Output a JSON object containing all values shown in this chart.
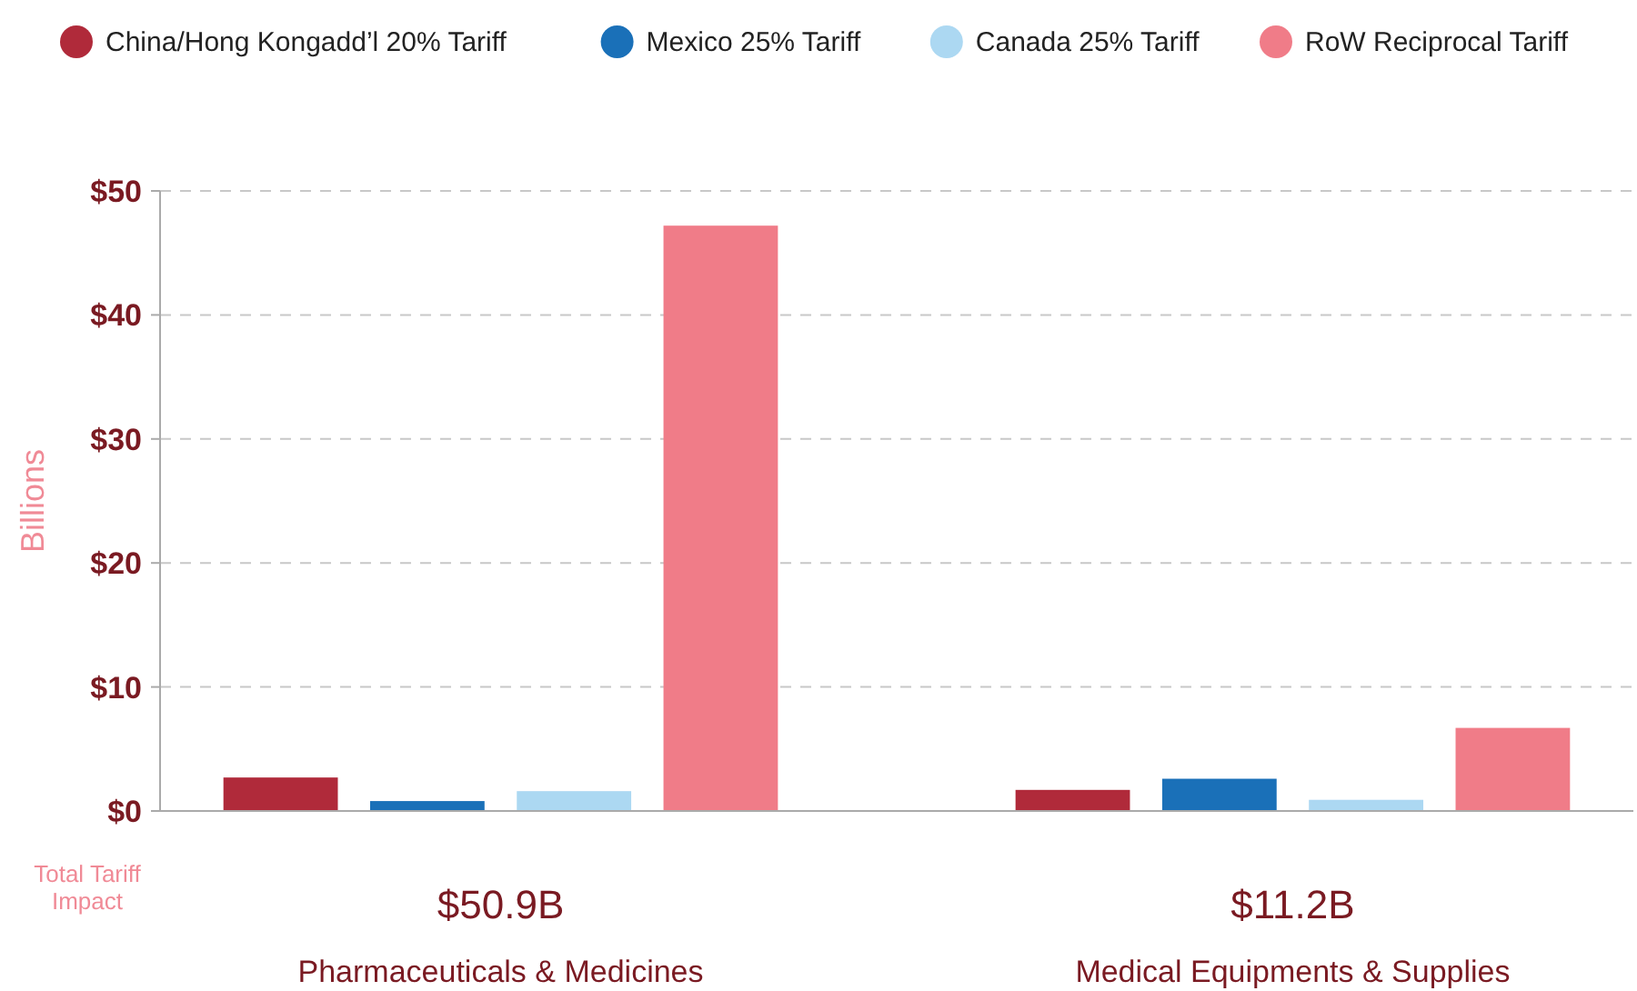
{
  "chart_data": {
    "type": "bar",
    "ylabel": "Billions",
    "categories": [
      "Pharmaceuticals & Medicines",
      "Medical Equipments & Supplies"
    ],
    "series": [
      {
        "name": "China/Hong Kongadd’l 20% Tariff",
        "color": "#b02a3a",
        "values": [
          2.7,
          1.7
        ]
      },
      {
        "name": "Mexico 25% Tariff",
        "color": "#1a70b8",
        "values": [
          0.8,
          2.6
        ]
      },
      {
        "name": "Canada 25% Tariff",
        "color": "#acd8f2",
        "values": [
          1.6,
          0.9
        ]
      },
      {
        "name": "RoW Reciprocal Tariff",
        "color": "#f07c88",
        "values": [
          47.2,
          6.7
        ]
      }
    ],
    "ylim": [
      0,
      50
    ],
    "yticks": [
      {
        "value": 0,
        "label": "$0"
      },
      {
        "value": 10,
        "label": "$10"
      },
      {
        "value": 20,
        "label": "$20"
      },
      {
        "value": 30,
        "label": "$30"
      },
      {
        "value": 40,
        "label": "$40"
      },
      {
        "value": 50,
        "label": "$50"
      }
    ],
    "grid": "y",
    "legend": "top left",
    "annotations": [
      "Total Tariff Impact",
      "$50.9B",
      "$11.2B"
    ]
  }
}
